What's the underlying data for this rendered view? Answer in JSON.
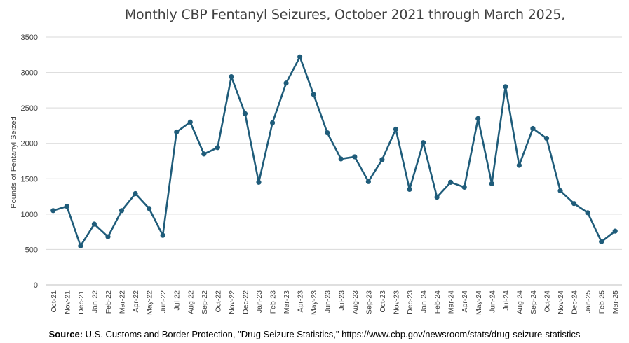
{
  "chart_data": {
    "type": "line",
    "title": "Monthly CBP Fentanyl Seizures, October 2021 through March 2025,",
    "xlabel": "",
    "ylabel": "Pounds of Fentanyl Seized",
    "ylim": [
      0,
      3500
    ],
    "yticks": [
      0,
      500,
      1000,
      1500,
      2000,
      2500,
      3000,
      3500
    ],
    "grid": true,
    "line_color": "#1F5C7A",
    "categories": [
      "Oct-21",
      "Nov-21",
      "Dec-21",
      "Jan-22",
      "Feb-22",
      "Mar-22",
      "Apr-22",
      "May-22",
      "Jun-22",
      "Jul-22",
      "Aug-22",
      "Sep-22",
      "Oct-22",
      "Nov-22",
      "Dec-22",
      "Jan-23",
      "Feb-23",
      "Mar-23",
      "Apr-23",
      "May-23",
      "Jun-23",
      "Jul-23",
      "Aug-23",
      "Sep-23",
      "Oct-23",
      "Nov-23",
      "Dec-23",
      "Jan-24",
      "Feb-24",
      "Mar-24",
      "Apr-24",
      "May-24",
      "Jun-24",
      "Jul-24",
      "Aug-24",
      "Sep-24",
      "Oct-24",
      "Nov-24",
      "Dec-24",
      "Jan-25",
      "Feb-25",
      "Mar-25"
    ],
    "series": [
      {
        "values": [
          1050,
          1110,
          550,
          860,
          680,
          1050,
          1290,
          1080,
          700,
          2160,
          2300,
          1850,
          1940,
          2940,
          2420,
          1450,
          2290,
          2850,
          3220,
          2690,
          2150,
          1780,
          1810,
          1460,
          1770,
          2200,
          1350,
          2010,
          1240,
          1450,
          1380,
          2350,
          1430,
          2800,
          1690,
          2210,
          2070,
          1330,
          1150,
          1020,
          610,
          760
        ]
      }
    ]
  },
  "source": {
    "label": "Source:",
    "text": " U.S. Customs and Border Protection, \"Drug Seizure Statistics,\" https://www.cbp.gov/newsroom/stats/drug-seizure-statistics"
  }
}
